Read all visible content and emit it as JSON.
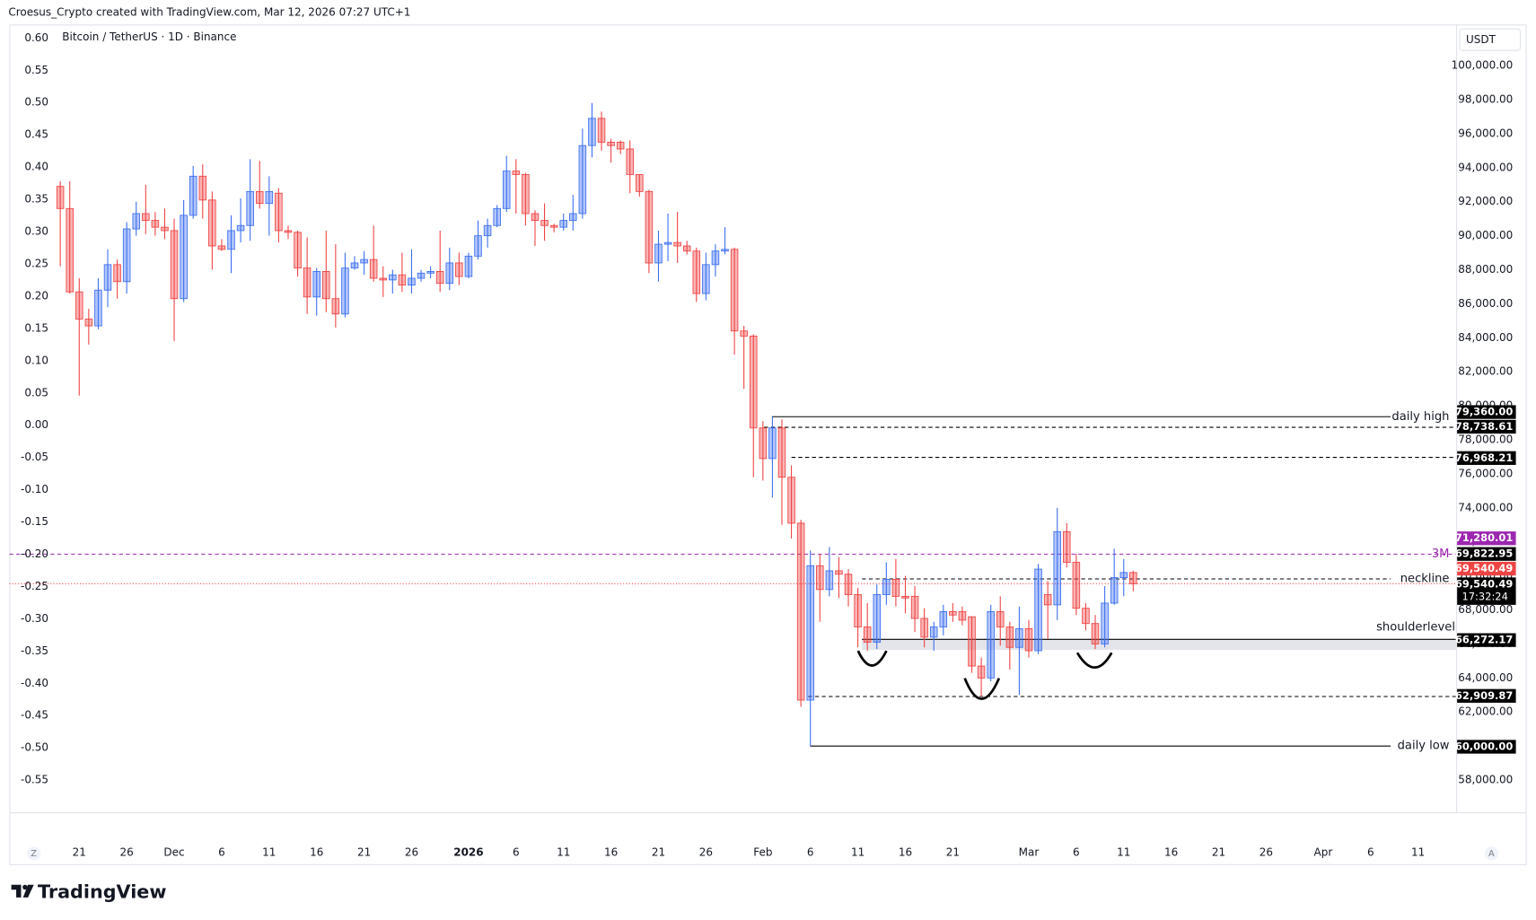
{
  "chart_data": {
    "type": "candlestick",
    "header": "Croesus_Crypto created with TradingView.com, Mar 12, 2026 07:27 UTC+1",
    "title": "Bitcoin / TetherUS · 1D · Binance",
    "currency": "USDT",
    "brand": "TradingView",
    "scale_buttons": [
      "Z",
      "A"
    ],
    "up_color": "#3d6ff0",
    "down_color": "#ef4444",
    "grid": false,
    "categories": [
      "Nov 19",
      "Nov 20",
      "Nov 21",
      "Nov 22",
      "Nov 23",
      "Nov 24",
      "Nov 25",
      "Nov 26",
      "Nov 27",
      "Nov 28",
      "Nov 29",
      "Nov 30",
      "Dec 1",
      "Dec 2",
      "Dec 3",
      "Dec 4",
      "Dec 5",
      "Dec 6",
      "Dec 7",
      "Dec 8",
      "Dec 9",
      "Dec 10",
      "Dec 11",
      "Dec 12",
      "Dec 13",
      "Dec 14",
      "Dec 15",
      "Dec 16",
      "Dec 17",
      "Dec 18",
      "Dec 19",
      "Dec 20",
      "Dec 21",
      "Dec 22",
      "Dec 23",
      "Dec 24",
      "Dec 25",
      "Dec 26",
      "Dec 27",
      "Dec 28",
      "Dec 29",
      "Dec 30",
      "Dec 31",
      "Jan 1",
      "Jan 2",
      "Jan 3",
      "Jan 4",
      "Jan 5",
      "Jan 6",
      "Jan 7",
      "Jan 8",
      "Jan 9",
      "Jan 10",
      "Jan 11",
      "Jan 12",
      "Jan 13",
      "Jan 14",
      "Jan 15",
      "Jan 16",
      "Jan 17",
      "Jan 18",
      "Jan 19",
      "Jan 20",
      "Jan 21",
      "Jan 22",
      "Jan 23",
      "Jan 24",
      "Jan 25",
      "Jan 26",
      "Jan 27",
      "Jan 28",
      "Jan 29",
      "Jan 30",
      "Jan 31",
      "Feb 1",
      "Feb 2",
      "Feb 3",
      "Feb 4",
      "Feb 5",
      "Feb 6",
      "Feb 7",
      "Feb 8",
      "Feb 9",
      "Feb 10",
      "Feb 11",
      "Feb 12",
      "Feb 13",
      "Feb 14",
      "Feb 15",
      "Feb 16",
      "Feb 17",
      "Feb 18",
      "Feb 19",
      "Feb 20",
      "Feb 21",
      "Feb 22",
      "Feb 23",
      "Feb 24",
      "Feb 25",
      "Feb 26",
      "Feb 27",
      "Feb 28",
      "Mar 1",
      "Mar 2",
      "Mar 3",
      "Mar 4",
      "Mar 5",
      "Mar 6",
      "Mar 7",
      "Mar 8",
      "Mar 9",
      "Mar 10",
      "Mar 11",
      "Mar 12",
      "Mar 13",
      "Mar 14",
      "Mar 15",
      "Mar 16",
      "Mar 17",
      "Mar 18",
      "Mar 19",
      "Mar 20",
      "Mar 21",
      "Mar 22",
      "Mar 23",
      "Mar 24",
      "Mar 25",
      "Mar 26",
      "Mar 27",
      "Mar 28",
      "Mar 29",
      "Mar 30",
      "Mar 31",
      "Apr 1",
      "Apr 2",
      "Apr 3",
      "Apr 4",
      "Apr 5",
      "Apr 6",
      "Apr 7",
      "Apr 8",
      "Apr 9",
      "Apr 10",
      "Apr 11",
      "Apr 12",
      "Apr 13",
      "Apr 14"
    ],
    "open": [
      92900,
      91600,
      86700,
      85100,
      84700,
      86800,
      88300,
      87300,
      90400,
      91300,
      90900,
      90500,
      90300,
      86300,
      91200,
      93500,
      92100,
      89400,
      89200,
      90300,
      90600,
      92600,
      91900,
      92500,
      90300,
      90200,
      88100,
      86400,
      87900,
      86300,
      85400,
      88100,
      88400,
      88600,
      87500,
      87400,
      87700,
      87100,
      87500,
      87800,
      87900,
      87200,
      88400,
      87600,
      88800,
      90000,
      90600,
      91600,
      93800,
      93600,
      91300,
      90900,
      90600,
      90500,
      90900,
      91300,
      95300,
      96900,
      95500,
      95500,
      95100,
      93600,
      92600,
      88400,
      89500,
      89600,
      89400,
      89100,
      86600,
      88300,
      89100,
      89200,
      84400,
      84100,
      78700,
      76900,
      78700,
      75800,
      73100,
      62700,
      70600,
      69200,
      70300,
      70100,
      68900,
      67000,
      66100,
      68900,
      69800,
      68800,
      68800,
      67500,
      66400,
      67000,
      67900,
      67900,
      67600,
      64700,
      64000,
      67900,
      67000,
      65800,
      66900,
      65600,
      68900,
      68300,
      72600,
      70800,
      68100,
      67200,
      66000,
      68400,
      69900,
      70200,
      null,
      null,
      null,
      null,
      null,
      null,
      null,
      null,
      null,
      null,
      null,
      null,
      null,
      null,
      null,
      null,
      null,
      null,
      null,
      null,
      null,
      null,
      null,
      null,
      null,
      null,
      null,
      null,
      null,
      null,
      null,
      null,
      null
    ],
    "high": [
      93200,
      93200,
      87500,
      85700,
      87500,
      89200,
      88600,
      90800,
      92000,
      93000,
      91400,
      91600,
      91000,
      92100,
      94100,
      94200,
      92600,
      89800,
      91200,
      92200,
      94500,
      94400,
      93500,
      92800,
      90600,
      90300,
      89900,
      88100,
      90300,
      89500,
      89000,
      88800,
      89100,
      90600,
      88200,
      88000,
      89000,
      89200,
      88000,
      88200,
      90300,
      89300,
      89000,
      89000,
      90900,
      91000,
      91800,
      94700,
      94500,
      93700,
      91500,
      91900,
      90700,
      91300,
      92400,
      96300,
      97800,
      97300,
      95700,
      95600,
      95600,
      93600,
      92700,
      90300,
      91300,
      91400,
      89700,
      89300,
      89000,
      89500,
      90500,
      89300,
      84700,
      84200,
      79100,
      79360,
      79200,
      76500,
      73300,
      71500,
      71300,
      71700,
      71100,
      70400,
      69300,
      68400,
      69500,
      70800,
      71000,
      70000,
      69400,
      68100,
      67300,
      68300,
      68400,
      68200,
      67600,
      65200,
      68300,
      68800,
      67300,
      68200,
      67400,
      70700,
      69700,
      74000,
      73100,
      71300,
      68400,
      67700,
      69400,
      71600,
      71000,
      70300,
      null,
      null,
      null,
      null,
      null,
      null,
      null,
      null,
      null,
      null,
      null,
      null,
      null,
      null,
      null,
      null,
      null,
      null,
      null,
      null,
      null,
      null,
      null,
      null,
      null,
      null,
      null,
      null,
      null,
      null,
      null,
      null,
      null
    ],
    "low": [
      88200,
      86600,
      80600,
      83600,
      84500,
      85800,
      86300,
      86600,
      90000,
      90100,
      90000,
      89800,
      83800,
      86100,
      91000,
      91000,
      88000,
      89100,
      87800,
      89600,
      89700,
      91600,
      90000,
      89600,
      89800,
      87600,
      85400,
      85300,
      85500,
      84600,
      85200,
      88000,
      87700,
      87300,
      86400,
      86600,
      86700,
      86600,
      87300,
      87500,
      86700,
      86800,
      87100,
      87500,
      88600,
      89300,
      90500,
      91400,
      91300,
      90600,
      89400,
      89700,
      90200,
      90300,
      90300,
      91000,
      94600,
      95000,
      94300,
      94800,
      92500,
      92300,
      87800,
      87300,
      88500,
      88400,
      88900,
      86100,
      86200,
      87600,
      88900,
      83000,
      81000,
      75800,
      75600,
      74600,
      73000,
      72200,
      62300,
      60000,
      67300,
      68800,
      68700,
      68200,
      65800,
      65600,
      65700,
      68300,
      68200,
      67800,
      66700,
      65800,
      65600,
      66500,
      67300,
      67100,
      64300,
      62900,
      63800,
      65900,
      64500,
      63000,
      65200,
      65400,
      66300,
      67400,
      70500,
      67700,
      66800,
      65700,
      65800,
      68300,
      68800,
      69100,
      null,
      null,
      null,
      null,
      null,
      null,
      null,
      null,
      null,
      null,
      null,
      null,
      null,
      null,
      null,
      null,
      null,
      null,
      null,
      null,
      null,
      null,
      null,
      null,
      null,
      null,
      null,
      null,
      null,
      null,
      null,
      null,
      null
    ],
    "close": [
      91600,
      86700,
      85100,
      84700,
      86800,
      88300,
      87300,
      90400,
      91300,
      90900,
      90500,
      90300,
      86300,
      91200,
      93500,
      92100,
      89400,
      89200,
      90300,
      90600,
      92600,
      91900,
      92600,
      90300,
      90200,
      88100,
      86400,
      87900,
      86300,
      85400,
      88100,
      88400,
      88600,
      87500,
      87400,
      87700,
      87100,
      87500,
      87800,
      87900,
      87200,
      88400,
      87600,
      88800,
      90000,
      90600,
      91600,
      93800,
      93600,
      91300,
      90900,
      90600,
      90500,
      90900,
      91300,
      95300,
      96900,
      95500,
      95300,
      95100,
      93600,
      92600,
      88400,
      89500,
      89600,
      89400,
      89100,
      86600,
      88300,
      89100,
      89200,
      84400,
      84100,
      78700,
      76900,
      78700,
      75800,
      73100,
      62700,
      70600,
      69200,
      70300,
      70100,
      68900,
      67000,
      66100,
      68900,
      69800,
      68800,
      68700,
      67500,
      66400,
      67000,
      67900,
      67700,
      67400,
      64700,
      64000,
      67900,
      67000,
      65800,
      66900,
      65600,
      70400,
      68300,
      72600,
      70800,
      68100,
      67200,
      66000,
      68400,
      69900,
      70200,
      69540.49,
      null,
      null,
      null,
      null,
      null,
      null,
      null,
      null,
      null,
      null,
      null,
      null,
      null,
      null,
      null,
      null,
      null,
      null,
      null,
      null,
      null,
      null,
      null,
      null,
      null,
      null,
      null,
      null,
      null,
      null,
      null,
      null,
      null
    ],
    "xticks": [
      {
        "value": "Nov 21",
        "label": "21"
      },
      {
        "value": "Nov 26",
        "label": "26"
      },
      {
        "value": "Dec 1",
        "label": "Dec"
      },
      {
        "value": "Dec 6",
        "label": "6"
      },
      {
        "value": "Dec 11",
        "label": "11"
      },
      {
        "value": "Dec 16",
        "label": "16"
      },
      {
        "value": "Dec 21",
        "label": "21"
      },
      {
        "value": "Dec 26",
        "label": "26"
      },
      {
        "value": "Jan 1",
        "label": "2026"
      },
      {
        "value": "Jan 6",
        "label": "6"
      },
      {
        "value": "Jan 11",
        "label": "11"
      },
      {
        "value": "Jan 16",
        "label": "16"
      },
      {
        "value": "Jan 21",
        "label": "21"
      },
      {
        "value": "Jan 26",
        "label": "26"
      },
      {
        "value": "Feb 1",
        "label": "Feb"
      },
      {
        "value": "Feb 6",
        "label": "6"
      },
      {
        "value": "Feb 11",
        "label": "11"
      },
      {
        "value": "Feb 16",
        "label": "16"
      },
      {
        "value": "Feb 21",
        "label": "21"
      },
      {
        "value": "Mar 1",
        "label": "Mar"
      },
      {
        "value": "Mar 6",
        "label": "6"
      },
      {
        "value": "Mar 11",
        "label": "11"
      },
      {
        "value": "Mar 16",
        "label": "16"
      },
      {
        "value": "Mar 21",
        "label": "21"
      },
      {
        "value": "Mar 26",
        "label": "26"
      },
      {
        "value": "Apr 1",
        "label": "Apr"
      },
      {
        "value": "Apr 6",
        "label": "6"
      },
      {
        "value": "Apr 11",
        "label": "11"
      }
    ],
    "ylim": [
      -0.6,
      0.621
    ],
    "yticks": [
      {
        "value": 0.6,
        "label": "0.60"
      },
      {
        "value": 0.55,
        "label": "0.55"
      },
      {
        "value": 0.5,
        "label": "0.50"
      },
      {
        "value": 0.45,
        "label": "0.45"
      },
      {
        "value": 0.4,
        "label": "0.40"
      },
      {
        "value": 0.35,
        "label": "0.35"
      },
      {
        "value": 0.3,
        "label": "0.30"
      },
      {
        "value": 0.25,
        "label": "0.25"
      },
      {
        "value": 0.2,
        "label": "0.20"
      },
      {
        "value": 0.15,
        "label": "0.15"
      },
      {
        "value": 0.1,
        "label": "0.10"
      },
      {
        "value": 0.05,
        "label": "0.05"
      },
      {
        "value": 0,
        "label": "0.00"
      },
      {
        "value": -0.05,
        "label": "-0.05"
      },
      {
        "value": -0.1,
        "label": "-0.10"
      },
      {
        "value": -0.15,
        "label": "-0.15"
      },
      {
        "value": -0.2,
        "label": "-0.20"
      },
      {
        "value": -0.25,
        "label": "-0.25"
      },
      {
        "value": -0.3,
        "label": "-0.30"
      },
      {
        "value": -0.35,
        "label": "-0.35"
      },
      {
        "value": -0.4,
        "label": "-0.40"
      },
      {
        "value": -0.45,
        "label": "-0.45"
      },
      {
        "value": -0.5,
        "label": "-0.50"
      },
      {
        "value": -0.55,
        "label": "-0.55"
      }
    ],
    "y2lim": [
      56100,
      102420
    ],
    "y2ticks": [
      {
        "value": 100000,
        "label": "100,000.00"
      },
      {
        "value": 98000,
        "label": "98,000.00"
      },
      {
        "value": 96000,
        "label": "96,000.00"
      },
      {
        "value": 94000,
        "label": "94,000.00"
      },
      {
        "value": 92000,
        "label": "92,000.00"
      },
      {
        "value": 90000,
        "label": "90,000.00"
      },
      {
        "value": 88000,
        "label": "88,000.00"
      },
      {
        "value": 86000,
        "label": "86,000.00"
      },
      {
        "value": 84000,
        "label": "84,000.00"
      },
      {
        "value": 82000,
        "label": "82,000.00"
      },
      {
        "value": 80000,
        "label": "80,000.00"
      },
      {
        "value": 78000,
        "label": "78,000.00"
      },
      {
        "value": 76000,
        "label": "76,000.00"
      },
      {
        "value": 74000,
        "label": "74,000.00"
      },
      {
        "value": 72000,
        "label": "72,000.00"
      },
      {
        "value": 70000,
        "label": "70,000.00"
      },
      {
        "value": 68000,
        "label": "68,000.00"
      },
      {
        "value": 66000,
        "label": "66,000.00"
      },
      {
        "value": 64000,
        "label": "64,000.00"
      },
      {
        "value": 62000,
        "label": "62,000.00"
      },
      {
        "value": 60000,
        "label": "60,000.00"
      },
      {
        "value": 58000,
        "label": "58,000.00"
      }
    ],
    "lines": [
      {
        "label": "daily high",
        "value": 79360,
        "value_label": "79,360.00",
        "style": "solid",
        "color": "#000000"
      },
      {
        "value": 78738.61,
        "value_label": "78,738.61",
        "style": "dashed",
        "color": "#000000"
      },
      {
        "value": 76968.21,
        "value_label": "76,968.21",
        "style": "dashed",
        "color": "#000000"
      },
      {
        "label": "3M",
        "value": 71280.01,
        "value_label": "71,280.01",
        "style": "dashed",
        "color": "#9c27b0"
      },
      {
        "label": "neckline",
        "value": 69822.95,
        "value_label": "69,822.95",
        "style": "dashed",
        "color": "#000000"
      },
      {
        "label": "shoulderlevel",
        "value": 66272.17,
        "value_label": "66,272.17",
        "style": "solid",
        "color": "#000000",
        "zone_low": 65650
      },
      {
        "value": 62909.87,
        "value_label": "62,909.87",
        "style": "dashed",
        "color": "#000000"
      },
      {
        "label": "daily low",
        "value": 60000,
        "value_label": "60,000.00",
        "style": "solid",
        "color": "#000000"
      }
    ],
    "last_price": {
      "value": 69540.49,
      "label": "69,540.49",
      "countdown": "17:32:24",
      "color": "#ef4444"
    }
  }
}
